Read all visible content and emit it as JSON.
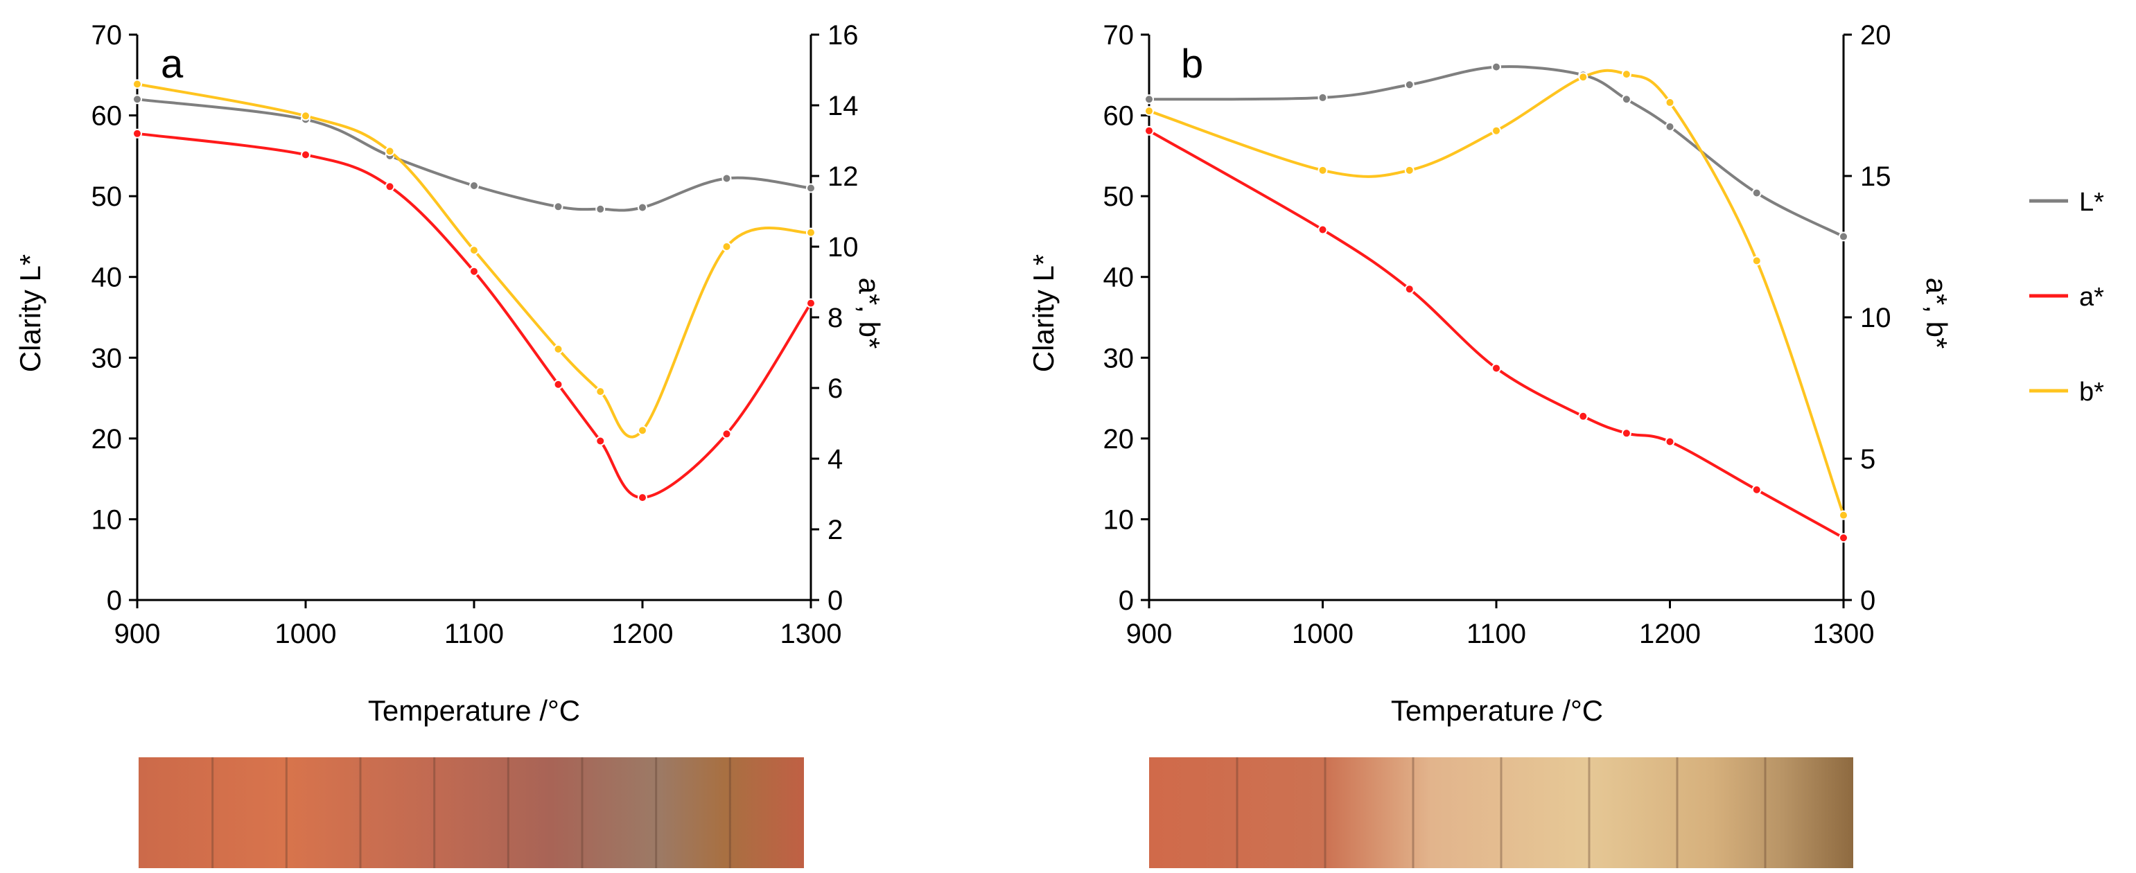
{
  "colors": {
    "L": "#7f7f7f",
    "a": "#ff1a1a",
    "b": "#ffc41f",
    "axis": "#000000"
  },
  "legend": [
    {
      "key": "L",
      "label": "L*"
    },
    {
      "key": "a",
      "label": "a*"
    },
    {
      "key": "b",
      "label": "b*"
    }
  ],
  "chart_data": [
    {
      "type": "line",
      "panel_label": "a",
      "xlabel": "Temperature /°C",
      "ylabel": "Clarity L*",
      "y2label": "a*, b*",
      "xlim": [
        900,
        1300
      ],
      "ylim": [
        0,
        70
      ],
      "y2lim": [
        0,
        16
      ],
      "xticks": [
        900,
        1000,
        1100,
        1200,
        1300
      ],
      "yticks": [
        0,
        10,
        20,
        30,
        40,
        50,
        60,
        70
      ],
      "y2ticks": [
        0,
        2,
        4,
        6,
        8,
        10,
        12,
        14,
        16
      ],
      "x": [
        900,
        1000,
        1050,
        1100,
        1150,
        1175,
        1200,
        1250,
        1300
      ],
      "series": [
        {
          "name": "L*",
          "key": "L",
          "axis": "left",
          "values": [
            62,
            59.5,
            55,
            51.3,
            48.7,
            48.4,
            48.6,
            52.2,
            51
          ]
        },
        {
          "name": "a*",
          "key": "a",
          "axis": "right",
          "values": [
            13.2,
            12.6,
            11.7,
            9.3,
            6.1,
            4.5,
            2.9,
            4.7,
            8.4
          ]
        },
        {
          "name": "b*",
          "key": "b",
          "axis": "right",
          "values": [
            14.6,
            13.7,
            12.7,
            9.9,
            7.1,
            5.9,
            4.8,
            10,
            10.4
          ]
        }
      ],
      "strip_segments": 9
    },
    {
      "type": "line",
      "panel_label": "b",
      "xlabel": "Temperature /°C",
      "ylabel": "Clarity L*",
      "y2label": "a*, b*",
      "xlim": [
        900,
        1300
      ],
      "ylim": [
        0,
        70
      ],
      "y2lim": [
        0,
        20
      ],
      "xticks": [
        900,
        1000,
        1100,
        1200,
        1300
      ],
      "yticks": [
        0,
        10,
        20,
        30,
        40,
        50,
        60,
        70
      ],
      "y2ticks": [
        0,
        5,
        10,
        15,
        20
      ],
      "x": [
        900,
        1000,
        1050,
        1100,
        1150,
        1175,
        1200,
        1250,
        1300
      ],
      "series": [
        {
          "name": "L*",
          "key": "L",
          "axis": "left",
          "values": [
            62,
            62.2,
            63.8,
            66,
            65,
            62,
            58.6,
            50.4,
            45
          ]
        },
        {
          "name": "a*",
          "key": "a",
          "axis": "right",
          "values": [
            16.6,
            13.1,
            11,
            8.2,
            6.5,
            5.9,
            5.6,
            3.9,
            2.2
          ]
        },
        {
          "name": "b*",
          "key": "b",
          "axis": "right",
          "values": [
            17.3,
            15.2,
            15.2,
            16.6,
            18.5,
            18.6,
            17.6,
            12,
            3
          ]
        }
      ],
      "strip_segments": 8
    }
  ]
}
